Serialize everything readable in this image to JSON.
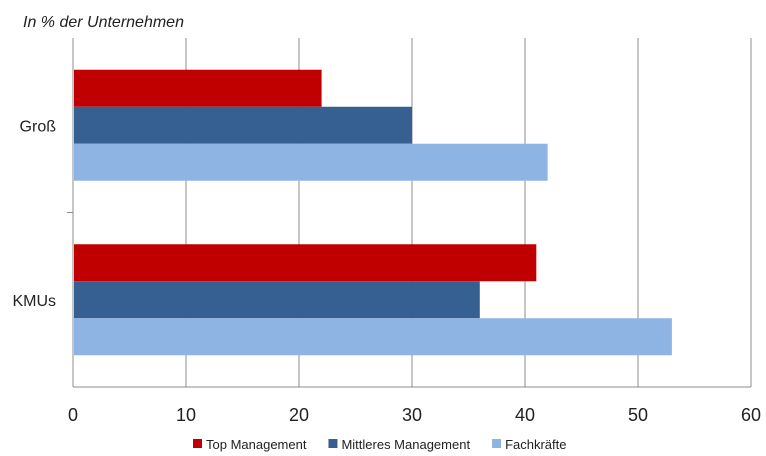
{
  "chart_data": {
    "type": "bar",
    "orientation": "horizontal",
    "title": "",
    "unit_label": "In % der Unternehmen",
    "categories": [
      "Groß",
      "KMUs"
    ],
    "series": [
      {
        "name": "Top Management",
        "values": [
          22,
          41
        ],
        "color": "#C00000"
      },
      {
        "name": "Mittleres Management",
        "values": [
          30,
          36
        ],
        "color": "#376092"
      },
      {
        "name": "Fachkräfte",
        "values": [
          42,
          53
        ],
        "color": "#8EB4E3"
      }
    ],
    "xlim": [
      0,
      60
    ],
    "x_ticks": [
      0,
      10,
      20,
      30,
      40,
      50,
      60
    ],
    "grid": "vertical",
    "legend": "bottom"
  }
}
